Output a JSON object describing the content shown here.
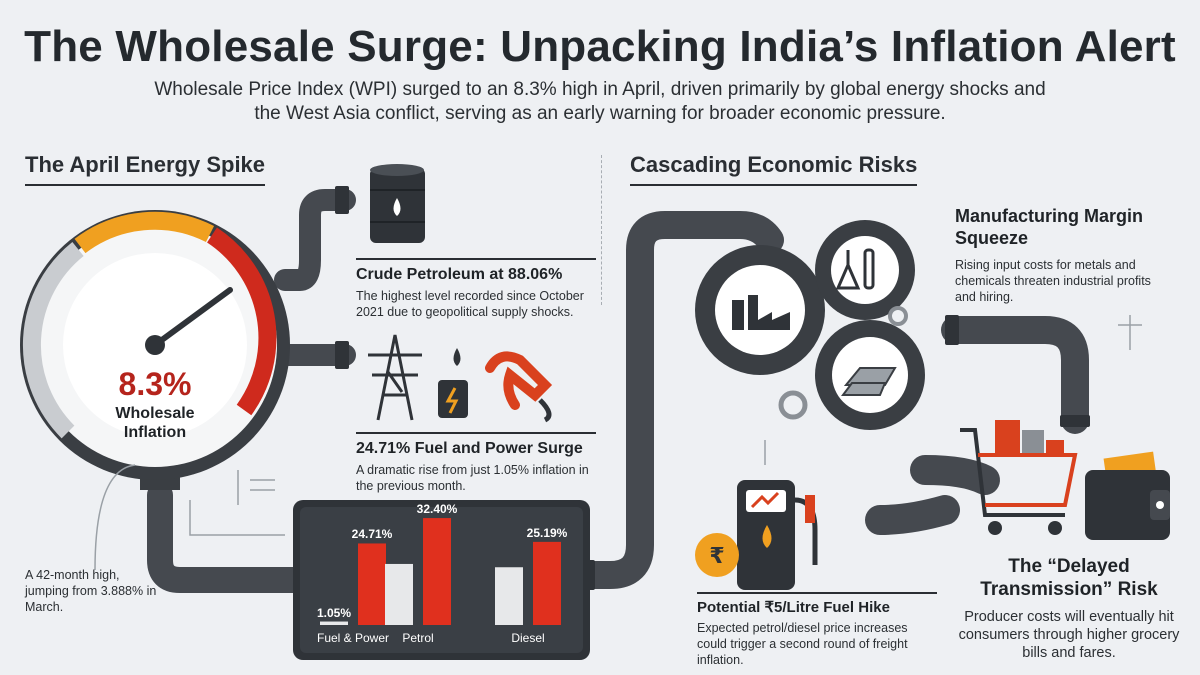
{
  "header": {
    "title": "The Wholesale Surge: Unpacking India’s Inflation Alert",
    "subtitle": "Wholesale Price Index (WPI) surged to an 8.3% high in April, driven primarily by global energy shocks and the West Asia conflict, serving as an early warning for broader economic pressure."
  },
  "left_section": {
    "heading": "The April Energy Spike",
    "gauge": {
      "value": "8.3%",
      "label": "Wholesale Inflation"
    },
    "side_note": "A 42-month high, jumping from 3.888% in March.",
    "crude": {
      "heading": "Crude Petroleum at 88.06%",
      "text": "The highest level recorded since October 2021 due to geopolitical supply shocks."
    },
    "fuel": {
      "heading": "24.71% Fuel and Power Surge",
      "text": "A dramatic rise from just 1.05% inflation in the previous month."
    }
  },
  "right_section": {
    "heading": "Cascading Economic Risks",
    "manufacturing": {
      "heading": "Manufacturing Margin Squeeze",
      "text": "Rising input costs for metals and chemicals threaten industrial profits and hiring."
    },
    "fuel_hike": {
      "heading": "Potential ₹5/Litre Fuel Hike",
      "text": "Expected petrol/diesel price increases could trigger a second round of freight inflation."
    },
    "delayed": {
      "heading": "The “Delayed Transmission” Risk",
      "text": "Producer costs will eventually hit consumers through higher grocery bills and fares."
    }
  },
  "chart_data": {
    "type": "bar",
    "categories": [
      "Fuel & Power",
      "Petrol",
      "Diesel"
    ],
    "series": [
      {
        "values": [
          1.05,
          18.5,
          17.5
        ]
      },
      {
        "values": [
          24.71,
          32.4,
          25.19
        ]
      }
    ],
    "data_labels": [
      "1.05%",
      "24.71%",
      "32.40%",
      "25.19%"
    ],
    "ylim": [
      0,
      40
    ],
    "colors": {
      "grey": "#e7e8ea",
      "red": "#e0301e"
    }
  },
  "colors": {
    "accent_red": "#e0301e",
    "dark": "#2f3338",
    "pipe": "#45494f"
  }
}
